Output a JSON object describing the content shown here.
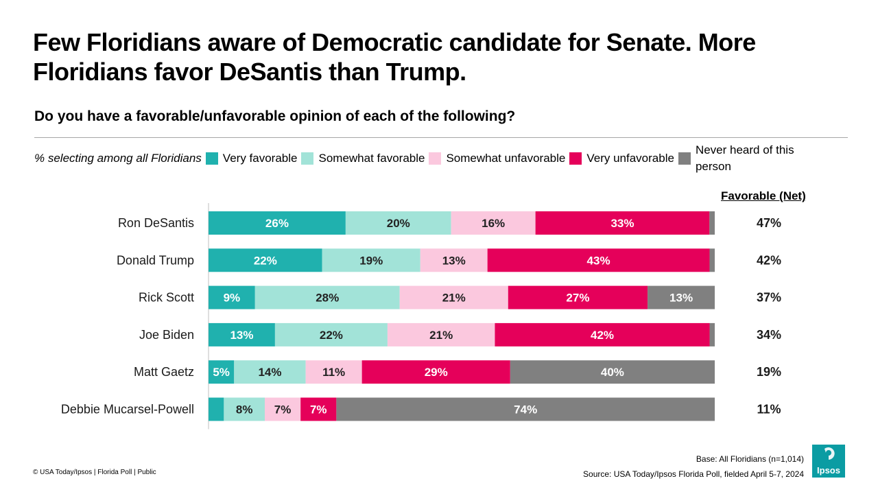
{
  "title": "Few Floridians aware of Democratic candidate for Senate. More Floridians favor DeSantis than Trump.",
  "subtitle": "Do you have a favorable/unfavorable opinion of each of the following?",
  "legend": {
    "lead": "% selecting among all Floridians",
    "items": [
      {
        "label": "Very favorable",
        "color": "#20b1ae"
      },
      {
        "label": "Somewhat favorable",
        "color": "#a2e3d8"
      },
      {
        "label": "Somewhat unfavorable",
        "color": "#fbc8de"
      },
      {
        "label": "Very unfavorable",
        "color": "#e5005a"
      },
      {
        "label": "Never heard of this person",
        "color": "#808080"
      }
    ]
  },
  "net_header": "Favorable (Net)",
  "chart_data": {
    "type": "bar",
    "orientation": "horizontal",
    "stacked": true,
    "categories": [
      "Ron DeSantis",
      "Donald Trump",
      "Rick Scott",
      "Joe Biden",
      "Matt Gaetz",
      "Debbie Mucarsel-Powell"
    ],
    "series": [
      {
        "name": "Very favorable",
        "color": "#20b1ae",
        "label_color": "#ffffff",
        "values": [
          26,
          22,
          9,
          13,
          5,
          3
        ]
      },
      {
        "name": "Somewhat favorable",
        "color": "#a2e3d8",
        "label_color": "#222222",
        "values": [
          20,
          19,
          28,
          22,
          14,
          8
        ]
      },
      {
        "name": "Somewhat unfavorable",
        "color": "#fbc8de",
        "label_color": "#222222",
        "values": [
          16,
          13,
          21,
          21,
          11,
          7
        ]
      },
      {
        "name": "Very unfavorable",
        "color": "#e5005a",
        "label_color": "#ffffff",
        "values": [
          33,
          43,
          27,
          42,
          29,
          7
        ]
      },
      {
        "name": "Never heard of this person",
        "color": "#808080",
        "label_color": "#ffffff",
        "values": [
          1,
          1,
          13,
          1,
          40,
          74
        ]
      }
    ],
    "data_labels": [
      [
        "26%",
        "20%",
        "16%",
        "33%",
        ""
      ],
      [
        "22%",
        "19%",
        "13%",
        "43%",
        ""
      ],
      [
        "9%",
        "28%",
        "21%",
        "27%",
        "13%"
      ],
      [
        "13%",
        "22%",
        "21%",
        "42%",
        ""
      ],
      [
        "5%",
        "14%",
        "11%",
        "29%",
        "40%"
      ],
      [
        "",
        "8%",
        "7%",
        "7%",
        "74%"
      ]
    ],
    "net_favorable": [
      "47%",
      "42%",
      "37%",
      "34%",
      "19%",
      "11%"
    ],
    "xlim": [
      0,
      100
    ]
  },
  "footer": {
    "copyright": "© USA Today/Ipsos | Florida Poll | Public",
    "base": "Base: All Floridians (n=1,014)",
    "source": "Source: USA Today/Ipsos Florida Poll, fielded April 5-7, 2024"
  },
  "logo": {
    "text": "Ipsos",
    "color": "#0b9ca3"
  }
}
